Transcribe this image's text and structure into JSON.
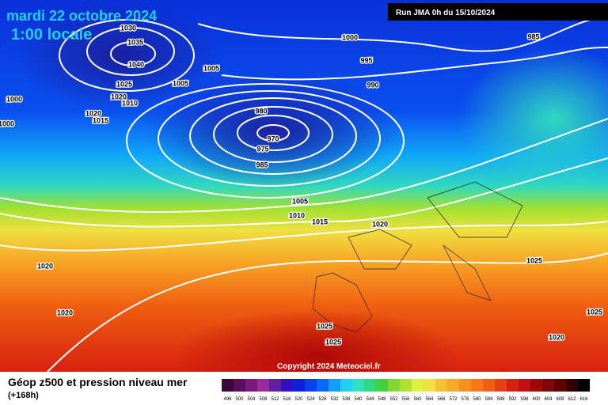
{
  "header": {
    "title": "mardi 22 octobre 2024",
    "time": "1:00 locale",
    "run": "Run JMA 0h du 15/10/2024"
  },
  "isobar_labels": [
    "1030",
    "1035",
    "1040",
    "1025",
    "1005",
    "1005",
    "1000",
    "995",
    "990",
    "985",
    "1020",
    "1010",
    "1020",
    "1015",
    "1000",
    "1000",
    "980",
    "970",
    "975",
    "985",
    "1005",
    "1010",
    "1015",
    "1020",
    "1025",
    "1020",
    "1020",
    "1025",
    "1025",
    "1025",
    "1020"
  ],
  "copyright": "Copyright 2024 Meteociel.fr",
  "footer": {
    "title": "Géop z500 et pression niveau mer",
    "lead": "(+168h)"
  },
  "colorbar": {
    "labels": [
      "496",
      "500",
      "504",
      "508",
      "512",
      "516",
      "520",
      "524",
      "528",
      "532",
      "536",
      "540",
      "544",
      "548",
      "552",
      "556",
      "560",
      "564",
      "568",
      "572",
      "576",
      "580",
      "584",
      "588",
      "592",
      "596",
      "600",
      "604",
      "608",
      "612",
      "616"
    ],
    "colors": [
      "#3a0a3a",
      "#5a0f5a",
      "#7a1a7a",
      "#9a2a9a",
      "#6020a0",
      "#3010c0",
      "#1020d8",
      "#0840f0",
      "#0a68f8",
      "#10a0f8",
      "#20d0f0",
      "#30e0c0",
      "#30d880",
      "#40d040",
      "#80d830",
      "#b0e030",
      "#e0f040",
      "#f0e040",
      "#f8c030",
      "#f8a828",
      "#f89020",
      "#f87818",
      "#f06010",
      "#e84010",
      "#d82010",
      "#c01010",
      "#a00808",
      "#800808",
      "#600000",
      "#300000",
      "#000000"
    ]
  }
}
